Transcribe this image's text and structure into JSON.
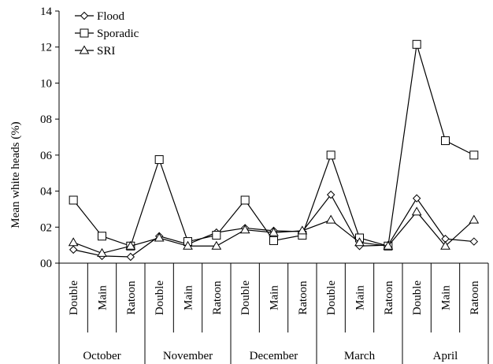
{
  "chart_data": {
    "type": "line",
    "ylabel": "Mean white heads (%)",
    "ylim": [
      0,
      14
    ],
    "ytick_values": [
      0,
      2,
      4,
      6,
      8,
      10,
      12,
      14
    ],
    "ytick_labels": [
      "00",
      "02",
      "04",
      "06",
      "08",
      "10",
      "12",
      "14"
    ],
    "grid": false,
    "legend_position": "top-left",
    "x_labels": [
      "Double",
      "Main",
      "Ratoon",
      "Double",
      "Main",
      "Ratoon",
      "Double",
      "Main",
      "Ratoon",
      "Double",
      "Main",
      "Ratoon",
      "Double",
      "Main",
      "Ratoon"
    ],
    "groups": [
      {
        "label": "October",
        "count": 3
      },
      {
        "label": "November",
        "count": 3
      },
      {
        "label": "December",
        "count": 3
      },
      {
        "label": "March",
        "count": 3
      },
      {
        "label": "April",
        "count": 3
      }
    ],
    "series": [
      {
        "name": "Flood",
        "marker": "diamond",
        "values": [
          0.75,
          0.4,
          0.35,
          1.5,
          1.05,
          1.7,
          1.95,
          1.8,
          1.75,
          3.8,
          0.95,
          1.0,
          3.6,
          1.35,
          1.2
        ]
      },
      {
        "name": "Sporadic",
        "marker": "square",
        "values": [
          3.5,
          1.5,
          0.95,
          5.75,
          1.2,
          1.55,
          3.5,
          1.25,
          1.55,
          6.0,
          1.4,
          0.95,
          12.15,
          6.8,
          6.0
        ]
      },
      {
        "name": "SRI",
        "marker": "triangle",
        "values": [
          1.15,
          0.55,
          0.95,
          1.4,
          0.95,
          0.95,
          1.85,
          1.7,
          1.8,
          2.4,
          1.15,
          0.95,
          2.85,
          0.95,
          2.4
        ]
      }
    ]
  }
}
